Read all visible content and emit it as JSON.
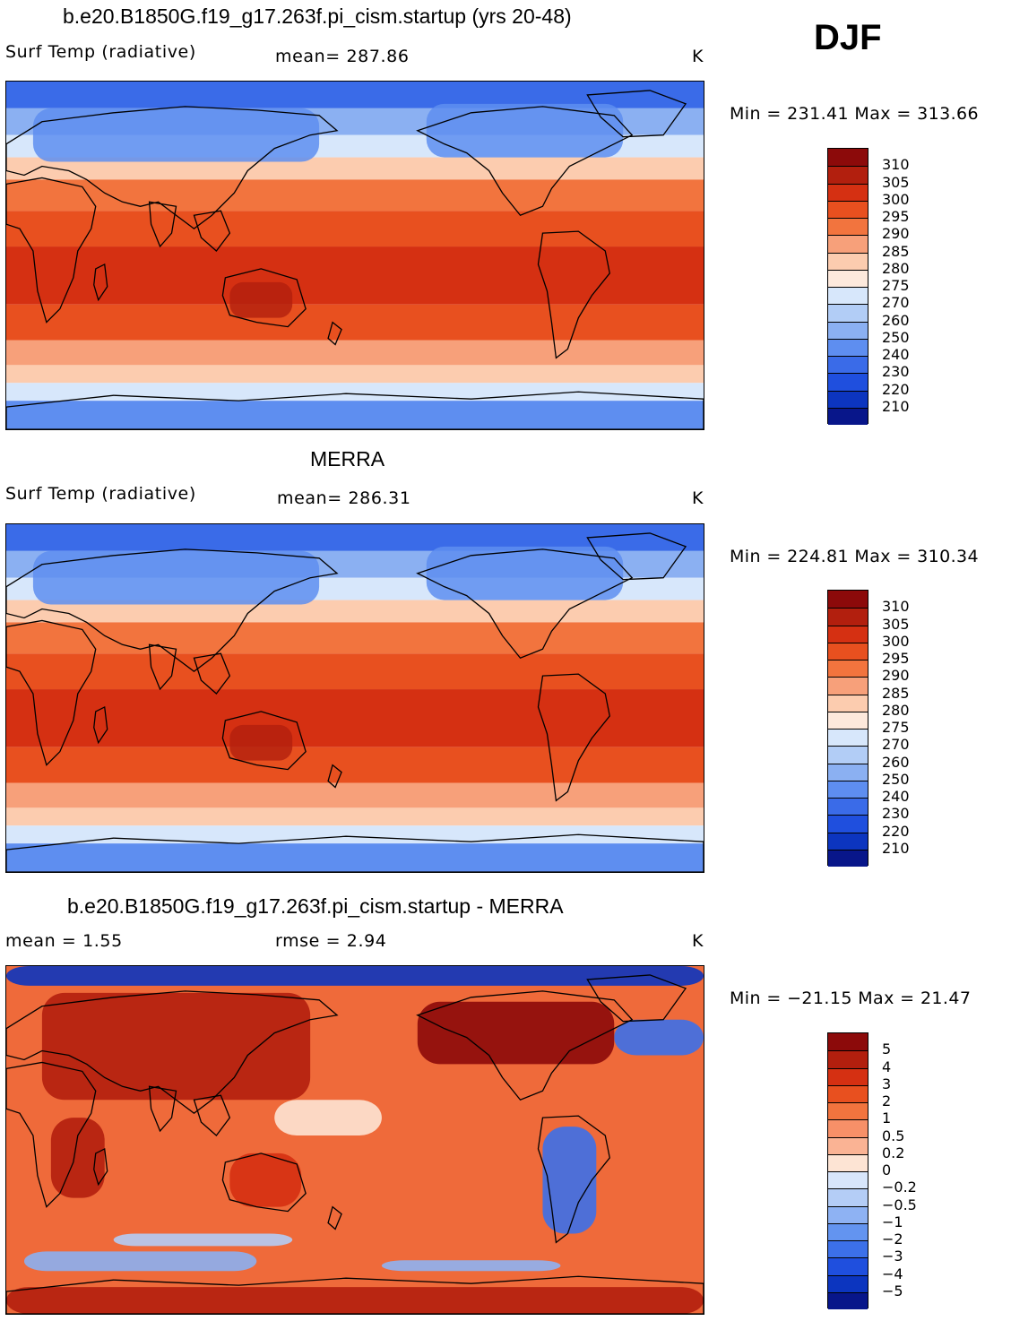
{
  "season": "DJF",
  "panels": [
    {
      "id": "model",
      "title": "b.e20.B1850G.f19_g17.263f.pi_cism.startup (yrs 20-48)",
      "left_label": "Surf Temp (radiative)",
      "center_label": "mean= 287.86",
      "units": "K",
      "minmax": "Min = 231.41 Max = 313.66",
      "colorbar_labels": [
        "310",
        "305",
        "300",
        "295",
        "290",
        "285",
        "280",
        "275",
        "270",
        "260",
        "250",
        "240",
        "230",
        "220",
        "210"
      ],
      "colors": [
        "#8c0a0a",
        "#b21f0e",
        "#d53012",
        "#e8501f",
        "#f2743e",
        "#f7a07a",
        "#fcccaf",
        "#fde9dc",
        "#d7e7fb",
        "#b2cdf6",
        "#8bb0f2",
        "#5e8ef0",
        "#3a6be8",
        "#1f4fde",
        "#0c35bf",
        "#08168a"
      ]
    },
    {
      "id": "obs",
      "title": "MERRA",
      "left_label": "Surf Temp (radiative)",
      "center_label": "mean= 286.31",
      "units": "K",
      "minmax": "Min = 224.81 Max = 310.34",
      "colorbar_labels": [
        "310",
        "305",
        "300",
        "295",
        "290",
        "285",
        "280",
        "275",
        "270",
        "260",
        "250",
        "240",
        "230",
        "220",
        "210"
      ],
      "colors": [
        "#8c0a0a",
        "#b21f0e",
        "#d53012",
        "#e8501f",
        "#f2743e",
        "#f7a07a",
        "#fcccaf",
        "#fde9dc",
        "#d7e7fb",
        "#b2cdf6",
        "#8bb0f2",
        "#5e8ef0",
        "#3a6be8",
        "#1f4fde",
        "#0c35bf",
        "#08168a"
      ]
    },
    {
      "id": "diff",
      "title": "b.e20.B1850G.f19_g17.263f.pi_cism.startup - MERRA",
      "left_label": "mean =    1.55",
      "center_label": "rmse =    2.94",
      "units": "K",
      "minmax": "Min = −21.15 Max =   21.47",
      "colorbar_labels": [
        "5",
        "4",
        "3",
        "2",
        "1",
        "0.5",
        "0.2",
        "0",
        "−0.2",
        "−0.5",
        "−1",
        "−2",
        "−3",
        "−4",
        "−5"
      ],
      "colors": [
        "#8c0a0a",
        "#b21f0e",
        "#d53012",
        "#e8501f",
        "#f2743e",
        "#f79068",
        "#fab394",
        "#fde4d4",
        "#d8e6fb",
        "#b4cdf6",
        "#8eb2f3",
        "#6394f0",
        "#3c70e9",
        "#1f4fde",
        "#0c35bf",
        "#08168a"
      ]
    }
  ]
}
